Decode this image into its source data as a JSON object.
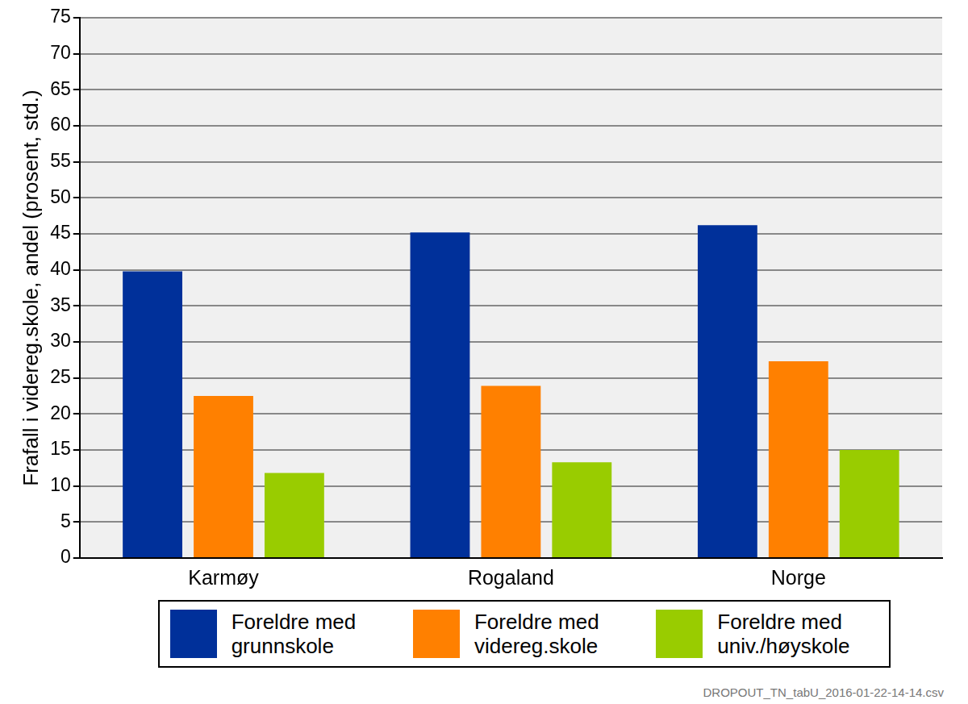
{
  "chart_data": {
    "type": "bar",
    "y_label": "Frafall i videreg.skole, andel (prosent, std.)",
    "categories": [
      "Karmøy",
      "Rogaland",
      "Norge"
    ],
    "series": [
      {
        "name": "Foreldre med grunnskole",
        "color": "#00309a",
        "values": [
          39.8,
          45.2,
          46.2
        ]
      },
      {
        "name": "Foreldre med videreg.skole",
        "color": "#ff8000",
        "values": [
          22.5,
          23.9,
          27.3
        ]
      },
      {
        "name": "Foreldre med univ./høyskole",
        "color": "#99cc00",
        "values": [
          11.8,
          13.3,
          15.0
        ]
      }
    ],
    "ylim": [
      0,
      75
    ],
    "yticks": [
      0,
      5,
      10,
      15,
      20,
      25,
      30,
      35,
      40,
      45,
      50,
      55,
      60,
      65,
      70,
      75
    ],
    "grid": true,
    "legend": "bottom",
    "annotations": [
      "DROPOUT_TN_tabU_2016-01-22-14-14.csv"
    ]
  }
}
